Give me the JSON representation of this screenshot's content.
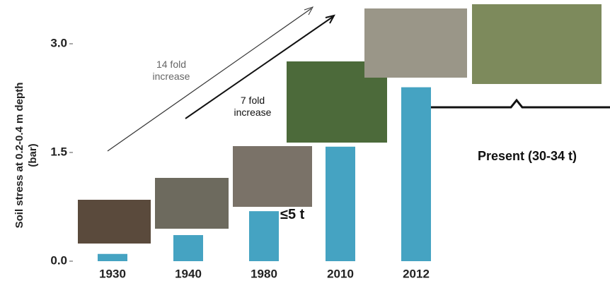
{
  "chart_data": {
    "type": "bar",
    "ylabel": [
      "Soil stress at 0.2-0.4 m depth",
      "(bar)"
    ],
    "categories": [
      "1930",
      "1940",
      "1980",
      "2010",
      "2012"
    ],
    "values": [
      0.1,
      0.36,
      0.69,
      1.58,
      2.4
    ],
    "color": "#45a3c2",
    "ylim": [
      0,
      3
    ],
    "yticks": [
      {
        "value": 0,
        "label": "0.0"
      },
      1.5,
      {
        "value": 3,
        "label": "3.0"
      }
    ],
    "annotations": [
      "14 fold\nincrease",
      "7 fold\nincrease",
      "≤5 t",
      "Present (30-34 t)"
    ]
  }
}
